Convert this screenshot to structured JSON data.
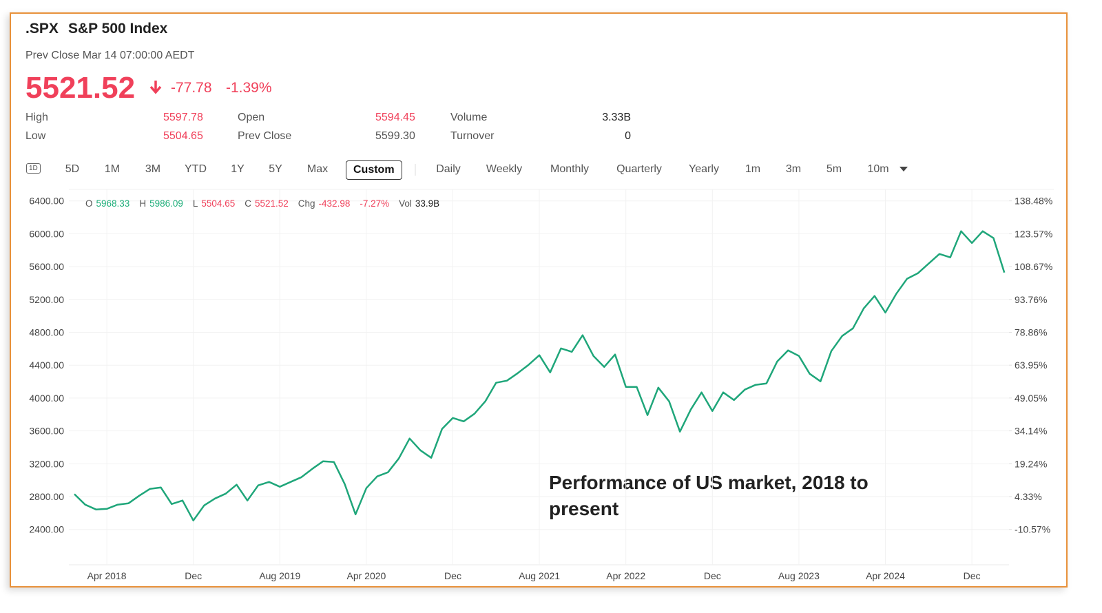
{
  "header": {
    "symbol": ".SPX",
    "name": "S&P 500 Index",
    "prev_close_time": "Prev Close Mar 14 07:00:00 AEDT",
    "price": "5521.52",
    "change": "-77.78",
    "change_pct": "-1.39%"
  },
  "stats": [
    [
      {
        "label": "High",
        "value": "5597.78"
      },
      {
        "label": "Open",
        "value": "5594.45"
      },
      {
        "label": "Volume",
        "value": "3.33B"
      }
    ],
    [
      {
        "label": "Low",
        "value": "5504.65"
      },
      {
        "label": "Prev Close",
        "value": "5599.30"
      },
      {
        "label": "Turnover",
        "value": "0"
      }
    ]
  ],
  "range_icon": "1D",
  "ranges": [
    "5D",
    "1M",
    "3M",
    "YTD",
    "1Y",
    "5Y",
    "Max"
  ],
  "custom_button": "Custom",
  "intervals": [
    "Daily",
    "Weekly",
    "Monthly",
    "Quarterly",
    "Yearly",
    "1m",
    "3m",
    "5m",
    "10m"
  ],
  "ohlc": [
    {
      "label": "O",
      "value": "5968.33"
    },
    {
      "label": "H",
      "value": "5986.09"
    },
    {
      "label": "L",
      "value": "5504.65"
    },
    {
      "label": "C",
      "value": "5521.52"
    },
    {
      "label": "Chg",
      "value": "-432.98"
    },
    {
      "value": "-7.27%"
    },
    {
      "label": "Vol",
      "value": "33.9B"
    }
  ],
  "chart_data": {
    "type": "line",
    "annotation": "Performance of US market, 2018 to present",
    "color": "#1fa67a",
    "categories": [
      null,
      null,
      null,
      "Apr 2018",
      null,
      null,
      null,
      null,
      null,
      null,
      null,
      "Dec",
      null,
      null,
      null,
      null,
      null,
      null,
      null,
      "Aug 2019",
      null,
      null,
      null,
      null,
      null,
      null,
      null,
      "Apr 2020",
      null,
      null,
      null,
      null,
      null,
      null,
      null,
      "Dec",
      null,
      null,
      null,
      null,
      null,
      null,
      null,
      "Aug 2021",
      null,
      null,
      null,
      null,
      null,
      null,
      null,
      "Apr 2022",
      null,
      null,
      null,
      null,
      null,
      null,
      null,
      "Dec",
      null,
      null,
      null,
      null,
      null,
      null,
      null,
      "Aug 2023",
      null,
      null,
      null,
      null,
      null,
      null,
      null,
      "Apr 2024",
      null,
      null,
      null,
      null,
      null,
      null,
      null,
      "Dec",
      null,
      null,
      null
    ],
    "values": [
      2830,
      2702,
      2643,
      2651,
      2702,
      2718,
      2811,
      2895,
      2911,
      2710,
      2752,
      2509,
      2693,
      2777,
      2836,
      2945,
      2752,
      2937,
      2979,
      2920,
      2979,
      3037,
      3138,
      3230,
      3222,
      2953,
      2584,
      2903,
      3046,
      3096,
      3264,
      3507,
      3364,
      3272,
      3624,
      3758,
      3716,
      3809,
      3960,
      4186,
      4211,
      4303,
      4404,
      4522,
      4312,
      4605,
      4563,
      4765,
      4513,
      4379,
      4530,
      4136,
      4136,
      3792,
      4127,
      3960,
      3591,
      3859,
      4069,
      3842,
      4069,
      3976,
      4102,
      4161,
      4178,
      4446,
      4580,
      4513,
      4295,
      4203,
      4572,
      4756,
      4849,
      5092,
      5243,
      5041,
      5268,
      5452,
      5519,
      5637,
      5754,
      5712,
      6031,
      5888,
      6031,
      5947,
      5528
    ],
    "ylim": [
      1970,
      6540
    ],
    "yticks": [
      {
        "value": 2400,
        "label": "2400.00"
      },
      {
        "value": 2800,
        "label": "2800.00"
      },
      {
        "value": 3200,
        "label": "3200.00"
      },
      {
        "value": 3600,
        "label": "3600.00"
      },
      {
        "value": 4000,
        "label": "4000.00"
      },
      {
        "value": 4400,
        "label": "4400.00"
      },
      {
        "value": 4800,
        "label": "4800.00"
      },
      {
        "value": 5200,
        "label": "5200.00"
      },
      {
        "value": 5600,
        "label": "5600.00"
      },
      {
        "value": 6000,
        "label": "6000.00"
      },
      {
        "value": 6400,
        "label": "6400.00"
      }
    ],
    "y2lim": [
      -26.6,
      143.68
    ],
    "y2ticks": [
      {
        "value": -10.57,
        "label": "-10.57%"
      },
      {
        "value": 4.33,
        "label": "4.33%"
      },
      {
        "value": 19.24,
        "label": "19.24%"
      },
      {
        "value": 34.14,
        "label": "34.14%"
      },
      {
        "value": 49.05,
        "label": "49.05%"
      },
      {
        "value": 63.95,
        "label": "63.95%"
      },
      {
        "value": 78.86,
        "label": "78.86%"
      },
      {
        "value": 93.76,
        "label": "93.76%"
      },
      {
        "value": 108.67,
        "label": "108.67%"
      },
      {
        "value": 123.57,
        "label": "123.57%"
      },
      {
        "value": 138.48,
        "label": "138.48%"
      }
    ],
    "grid": true
  }
}
